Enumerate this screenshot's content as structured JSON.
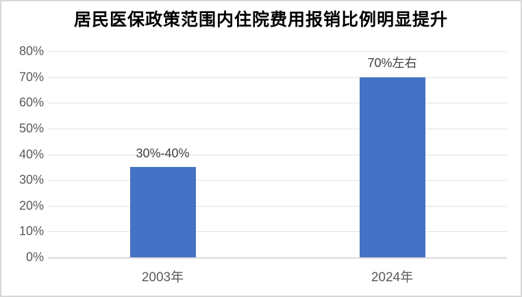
{
  "window": {
    "background": "#FFFFFF",
    "border_color": "#D7D7D7"
  },
  "chart_data": {
    "type": "bar",
    "title": "居民医保政策范围内住院费用报销比例明显提升",
    "categories": [
      "2003年",
      "2024年"
    ],
    "values": [
      35,
      70
    ],
    "data_labels": [
      "30%-40%",
      "70%左右"
    ],
    "ylim": [
      0,
      80
    ],
    "ytick_step": 10,
    "ytick_labels": [
      "0%",
      "10%",
      "20%",
      "30%",
      "40%",
      "50%",
      "60%",
      "70%",
      "80%"
    ],
    "xlabel": "",
    "ylabel": "",
    "grid": true,
    "legend": false,
    "bar_color": "#4472C4",
    "gridline_color": "#E2E2E2",
    "baseline_color": "#D9D9D9",
    "axis_label_color": "#595959",
    "data_label_color": "#404040",
    "title_color": "#000000"
  }
}
